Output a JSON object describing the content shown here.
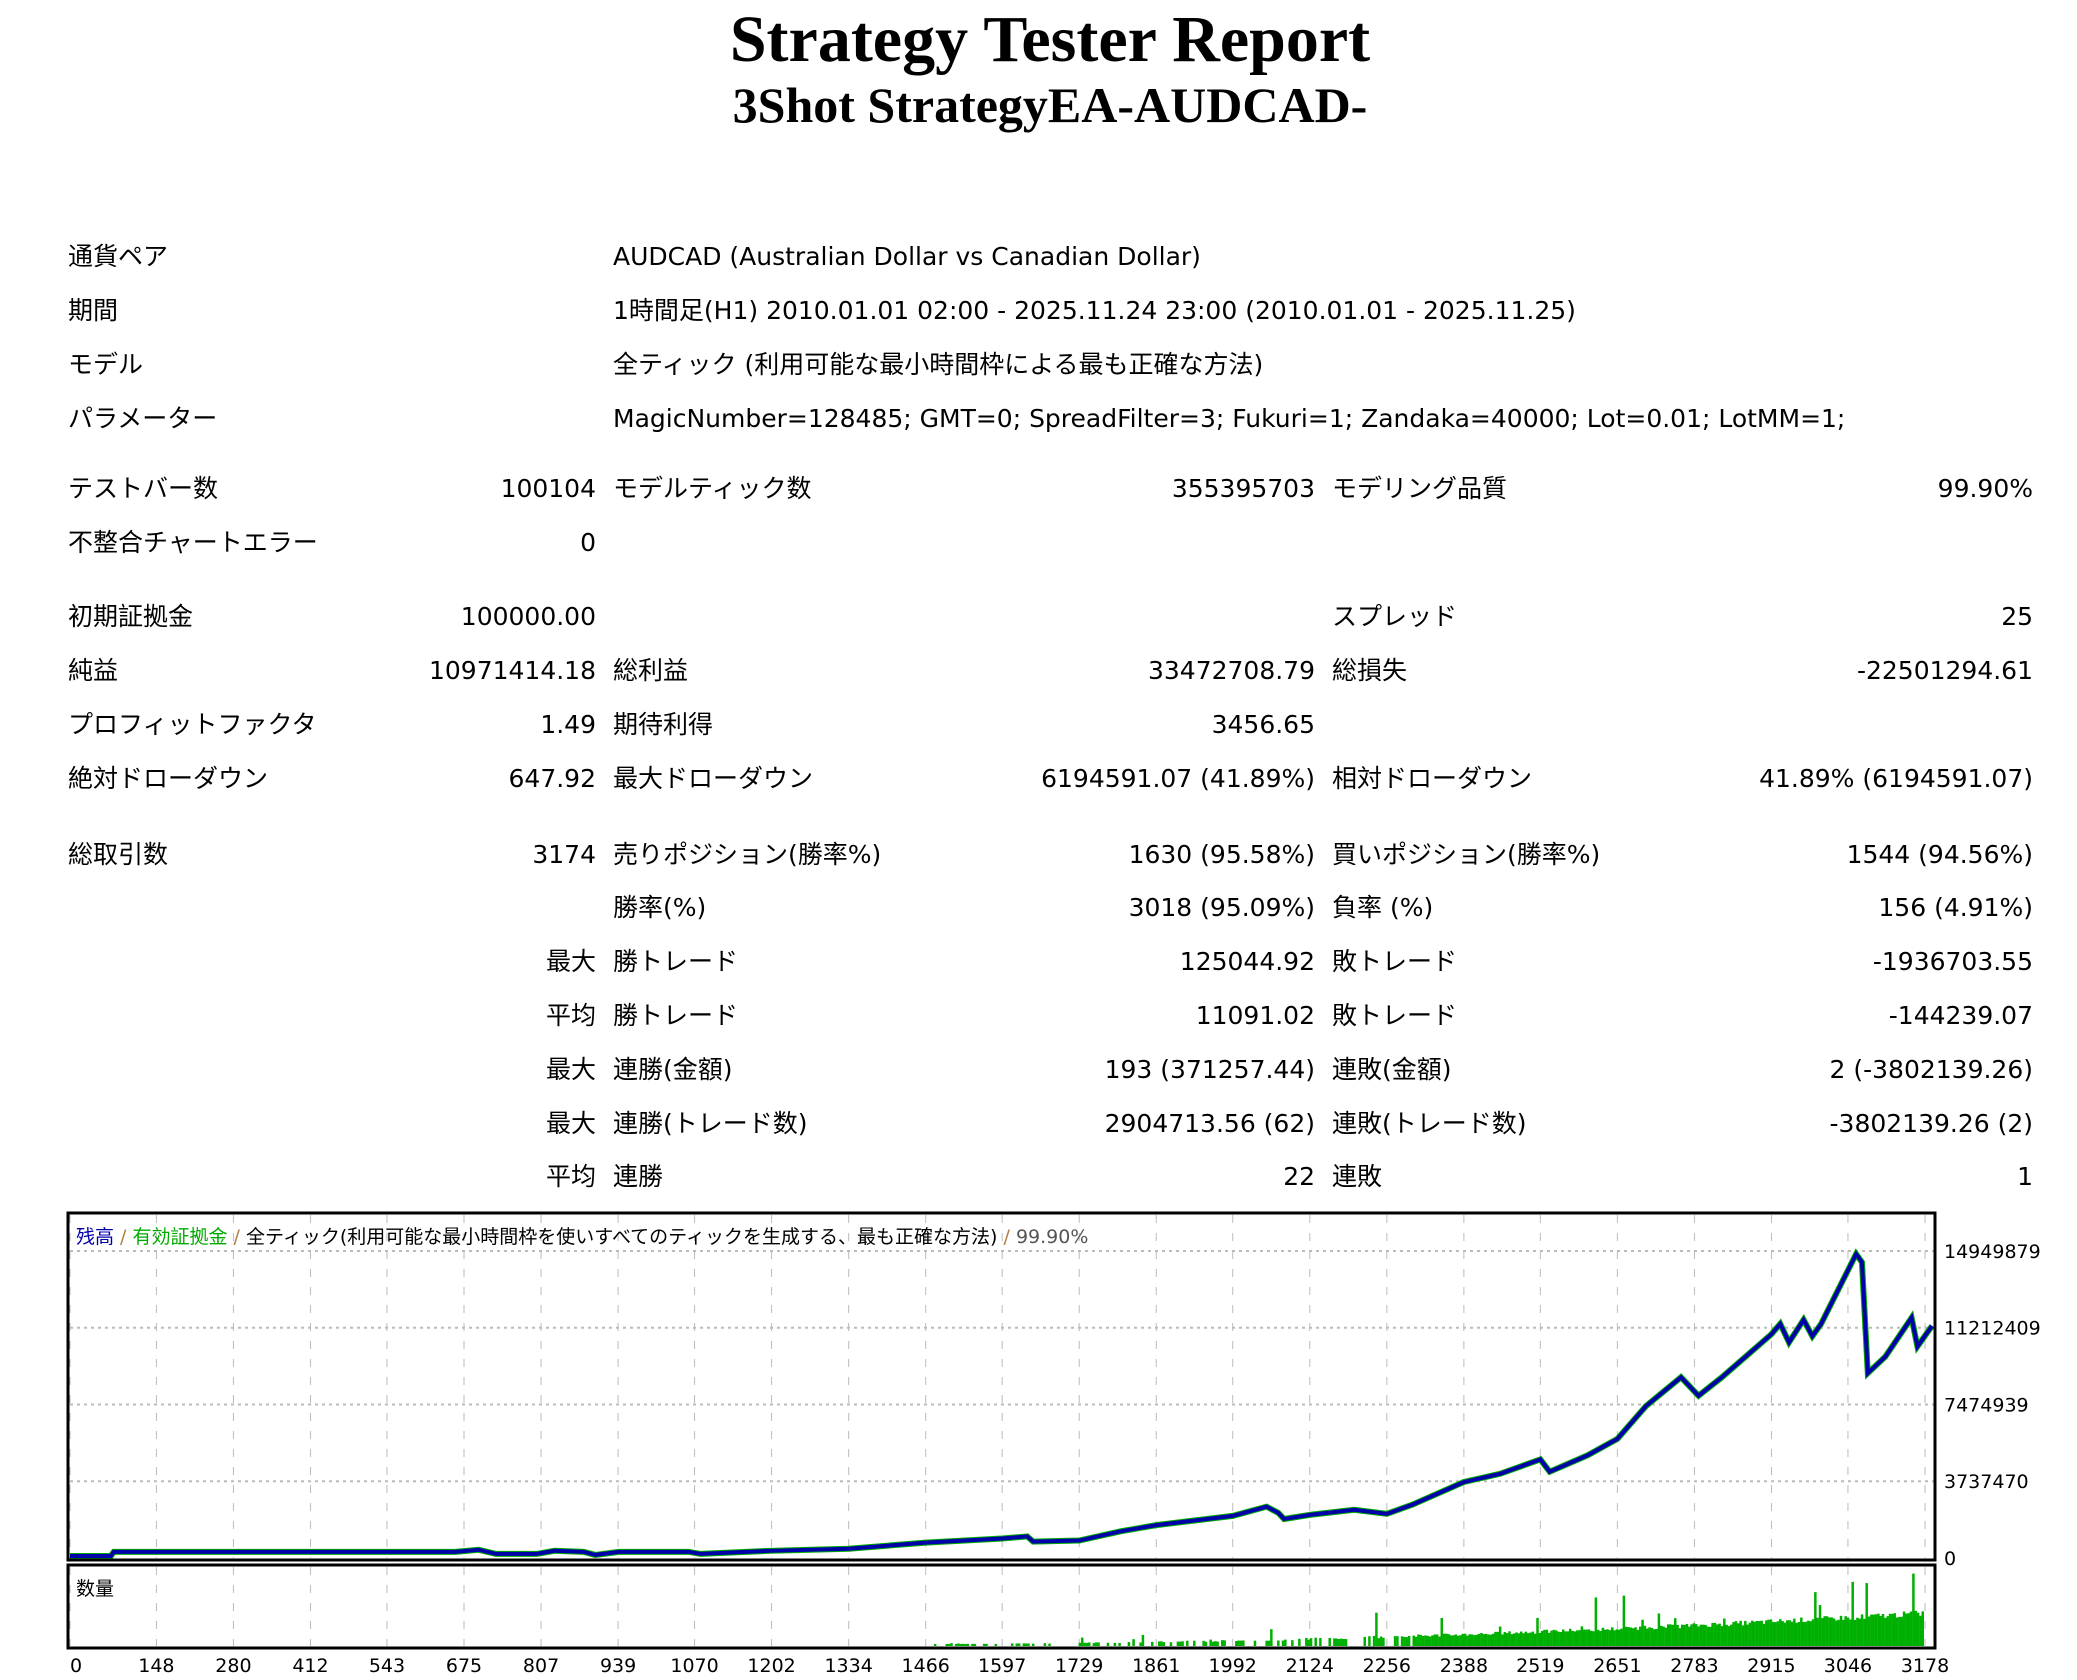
{
  "header": {
    "title": "Strategy Tester Report",
    "subtitle": "3Shot StrategyEA-AUDCAD-"
  },
  "info": [
    {
      "label": "通貨ペア",
      "value": "AUDCAD (Australian Dollar vs Canadian Dollar)"
    },
    {
      "label": "期間",
      "value": "1時間足(H1) 2010.01.01 02:00 - 2025.11.24 23:00 (2010.01.01 - 2025.11.25)"
    },
    {
      "label": "モデル",
      "value": "全ティック (利用可能な最小時間枠による最も正確な方法)"
    },
    {
      "label": "パラメーター",
      "value": "MagicNumber=128485; GMT=0; SpreadFilter=3; Fukuri=1; Zandaka=40000; Lot=0.01; LotMM=1;"
    }
  ],
  "stats": [
    [
      "テストバー数",
      "100104",
      "モデルティック数",
      "355395703",
      "モデリング品質",
      "99.90%"
    ],
    [
      "不整合チャートエラー",
      "0",
      "",
      "",
      "",
      ""
    ],
    [
      "初期証拠金",
      "100000.00",
      "",
      "",
      "スプレッド",
      "25"
    ],
    [
      "純益",
      "10971414.18",
      "総利益",
      "33472708.79",
      "総損失",
      "-22501294.61"
    ],
    [
      "プロフィットファクタ",
      "1.49",
      "期待利得",
      "3456.65",
      "",
      ""
    ],
    [
      "絶対ドローダウン",
      "647.92",
      "最大ドローダウン",
      "6194591.07 (41.89%)",
      "相対ドローダウン",
      "41.89% (6194591.07)"
    ],
    [
      "総取引数",
      "3174",
      "売りポジション(勝率%)",
      "1630 (95.58%)",
      "買いポジション(勝率%)",
      "1544 (94.56%)"
    ],
    [
      "",
      "",
      "勝率(%)",
      "3018 (95.09%)",
      "負率 (%)",
      "156 (4.91%)"
    ],
    [
      "",
      "最大",
      "勝トレード",
      "125044.92",
      "敗トレード",
      "-1936703.55"
    ],
    [
      "",
      "平均",
      "勝トレード",
      "11091.02",
      "敗トレード",
      "-144239.07"
    ],
    [
      "",
      "最大",
      "連勝(金額)",
      "193 (371257.44)",
      "連敗(金額)",
      "2 (-3802139.26)"
    ],
    [
      "",
      "最大",
      "連勝(トレード数)",
      "2904713.56 (62)",
      "連敗(トレード数)",
      "-3802139.26 (2)"
    ],
    [
      "",
      "平均",
      "連勝",
      "22",
      "連敗",
      "1"
    ]
  ],
  "chart_data": {
    "type": "line",
    "legend": {
      "balance": "残高",
      "sep1": " / ",
      "equity": "有効証拠金",
      "sep2": " / ",
      "model": "全ティック(利用可能な最小時間枠を使いすべてのティックを生成する、最も正確な方法)",
      "sep3": " / ",
      "quality": "99.90%"
    },
    "volume_label": "数量",
    "x_ticks": [
      0,
      148,
      280,
      412,
      543,
      675,
      807,
      939,
      1070,
      1202,
      1334,
      1466,
      1597,
      1729,
      1861,
      1992,
      2124,
      2256,
      2388,
      2519,
      2651,
      2783,
      2915,
      3046,
      3178
    ],
    "y_ticks": [
      0,
      3737470,
      7474939,
      11212409,
      14949879
    ],
    "xlim": [
      0,
      3190
    ],
    "ylim": [
      0,
      16700000
    ],
    "colors": {
      "balance": "#0000aa",
      "equity": "#00aa00",
      "volume": "#00b000"
    },
    "balance": [
      [
        0,
        100000
      ],
      [
        70,
        100000
      ],
      [
        75,
        300000
      ],
      [
        660,
        300000
      ],
      [
        700,
        400000
      ],
      [
        730,
        200000
      ],
      [
        800,
        200000
      ],
      [
        830,
        350000
      ],
      [
        880,
        300000
      ],
      [
        900,
        150000
      ],
      [
        940,
        300000
      ],
      [
        1060,
        300000
      ],
      [
        1080,
        200000
      ],
      [
        1200,
        350000
      ],
      [
        1334,
        450000
      ],
      [
        1466,
        750000
      ],
      [
        1597,
        950000
      ],
      [
        1640,
        1050000
      ],
      [
        1650,
        800000
      ],
      [
        1729,
        850000
      ],
      [
        1800,
        1300000
      ],
      [
        1861,
        1600000
      ],
      [
        1992,
        2050000
      ],
      [
        2050,
        2500000
      ],
      [
        2070,
        2200000
      ],
      [
        2080,
        1900000
      ],
      [
        2124,
        2100000
      ],
      [
        2200,
        2350000
      ],
      [
        2256,
        2150000
      ],
      [
        2300,
        2600000
      ],
      [
        2388,
        3700000
      ],
      [
        2450,
        4100000
      ],
      [
        2519,
        4800000
      ],
      [
        2535,
        4200000
      ],
      [
        2600,
        5000000
      ],
      [
        2651,
        5800000
      ],
      [
        2700,
        7400000
      ],
      [
        2760,
        8800000
      ],
      [
        2790,
        7900000
      ],
      [
        2830,
        8800000
      ],
      [
        2915,
        10900000
      ],
      [
        2930,
        11400000
      ],
      [
        2945,
        10500000
      ],
      [
        2970,
        11600000
      ],
      [
        2985,
        10800000
      ],
      [
        3000,
        11400000
      ],
      [
        3060,
        14800000
      ],
      [
        3070,
        14400000
      ],
      [
        3080,
        9000000
      ],
      [
        3110,
        9800000
      ],
      [
        3155,
        11700000
      ],
      [
        3165,
        10300000
      ],
      [
        3190,
        11300000
      ]
    ],
    "volume": [
      0,
      0,
      0,
      0,
      0,
      0,
      0,
      0,
      0,
      0,
      0,
      0,
      0,
      0,
      0,
      0,
      0,
      0,
      0,
      0,
      0,
      0,
      0,
      0,
      0,
      0,
      0,
      0,
      0,
      0,
      0,
      0,
      0,
      0,
      0,
      0,
      0,
      0,
      0,
      0,
      0,
      0,
      0,
      0,
      0,
      0,
      0,
      0,
      0,
      0,
      0,
      0,
      0,
      0,
      0,
      0,
      0,
      0,
      0,
      0,
      0,
      0,
      0,
      0,
      0,
      0,
      0,
      0,
      0,
      0,
      0,
      0,
      0,
      0,
      0,
      0,
      0,
      0,
      0,
      0,
      0,
      0,
      0,
      0,
      0,
      0,
      0,
      0,
      0,
      0,
      0,
      0,
      0,
      0,
      0,
      0,
      0,
      0,
      0,
      0,
      0,
      0,
      0,
      0,
      0,
      0,
      0,
      0,
      0,
      0,
      0,
      0,
      0,
      0,
      0,
      0,
      0,
      0,
      0,
      0,
      0,
      0,
      0,
      0,
      0,
      0,
      0,
      0,
      0,
      0,
      0,
      0,
      0,
      0,
      0,
      0,
      0,
      0,
      0,
      0,
      0,
      0,
      0,
      0,
      0,
      0,
      0,
      0,
      0,
      0,
      0,
      0,
      0,
      0,
      0,
      0,
      0,
      0,
      0,
      0,
      0,
      0,
      0,
      0,
      0,
      0,
      0,
      0,
      0,
      0,
      0,
      0,
      0,
      0,
      0,
      0,
      0,
      0,
      0,
      0,
      0,
      0,
      0,
      0,
      0,
      0,
      0,
      0,
      0,
      0,
      0,
      0,
      0,
      0,
      0,
      0,
      0,
      0,
      0,
      0,
      0,
      0,
      0,
      0,
      0,
      0,
      0,
      0,
      0,
      0,
      0,
      0,
      0,
      0,
      0,
      0,
      0,
      0,
      0,
      0,
      0,
      0,
      0,
      0,
      0,
      0,
      0,
      0,
      0,
      0,
      0,
      0,
      0,
      0,
      0,
      0,
      0,
      0,
      0,
      0,
      0,
      0,
      0,
      0,
      0,
      0,
      0,
      0,
      0,
      0,
      0,
      0,
      0,
      0,
      0,
      0,
      0,
      0,
      0,
      0,
      0,
      0,
      0,
      0,
      0,
      0,
      0,
      0,
      0,
      0,
      0,
      0,
      0,
      0,
      0,
      0,
      0,
      0,
      0,
      0,
      0,
      0,
      0,
      0,
      0,
      0,
      0,
      0,
      0,
      0,
      0,
      0,
      0,
      0,
      0,
      0,
      0,
      0,
      0,
      0,
      0,
      0,
      0,
      0,
      0,
      0,
      0,
      0,
      0,
      0,
      0,
      0,
      0,
      0,
      0,
      0,
      0,
      0,
      0,
      0,
      0,
      0,
      0,
      0,
      0,
      0
    ]
  }
}
